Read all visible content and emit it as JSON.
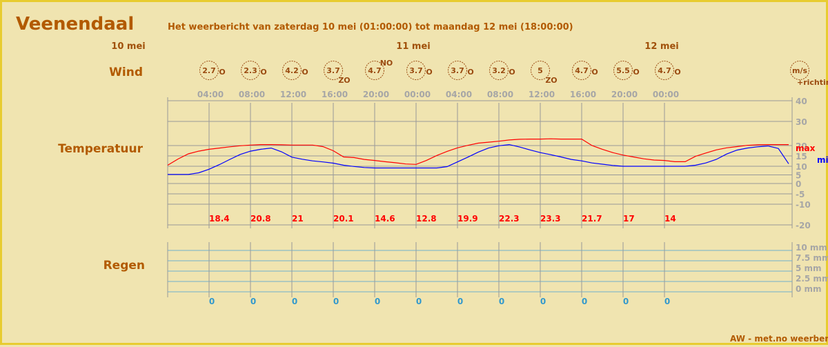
{
  "header": {
    "city": "Veenendaal",
    "subtitle": "Het weerbericht van zaterdag 10 mei (01:00:00) tot maandag 12 mei (18:00:00)"
  },
  "days": [
    {
      "label": "10 mei",
      "hour": 0
    },
    {
      "label": "11 mei",
      "hour": 24
    },
    {
      "label": "12 mei",
      "hour": 48
    }
  ],
  "row_labels": {
    "wind": "Wind",
    "temperature": "Temperatuur",
    "rain": "Regen"
  },
  "wind": {
    "unit": "m/s",
    "unit_note": "+richting",
    "points": [
      {
        "hour": 4,
        "speed": "2.7",
        "dir": "O"
      },
      {
        "hour": 8,
        "speed": "2.3",
        "dir": "O"
      },
      {
        "hour": 12,
        "speed": "4.2",
        "dir": "O"
      },
      {
        "hour": 16,
        "speed": "3.7",
        "dir": "ZO"
      },
      {
        "hour": 20,
        "speed": "4.7",
        "dir": "NO"
      },
      {
        "hour": 24,
        "speed": "3.7",
        "dir": "O"
      },
      {
        "hour": 28,
        "speed": "3.7",
        "dir": "O"
      },
      {
        "hour": 32,
        "speed": "3.2",
        "dir": "O"
      },
      {
        "hour": 36,
        "speed": "5",
        "dir": "ZO"
      },
      {
        "hour": 40,
        "speed": "4.7",
        "dir": "O"
      },
      {
        "hour": 44,
        "speed": "5.5",
        "dir": "O"
      },
      {
        "hour": 48,
        "speed": "4.7",
        "dir": "O"
      }
    ]
  },
  "time_labels": [
    {
      "hour": 4,
      "label": "04:00"
    },
    {
      "hour": 8,
      "label": "08:00"
    },
    {
      "hour": 12,
      "label": "12:00"
    },
    {
      "hour": 16,
      "label": "16:00"
    },
    {
      "hour": 20,
      "label": "20:00"
    },
    {
      "hour": 24,
      "label": "00:00"
    },
    {
      "hour": 28,
      "label": "04:00"
    },
    {
      "hour": 32,
      "label": "08:00"
    },
    {
      "hour": 36,
      "label": "12:00"
    },
    {
      "hour": 40,
      "label": "16:00"
    },
    {
      "hour": 44,
      "label": "20:00"
    },
    {
      "hour": 48,
      "label": "00:00"
    }
  ],
  "chart_data": {
    "type": "line",
    "title": "Temperatuur",
    "x_range_hours": [
      0,
      60
    ],
    "y_ticks": [
      40,
      30,
      20,
      15,
      10,
      5,
      0,
      -5,
      -10,
      -20
    ],
    "series": [
      {
        "name": "max",
        "color": "#ff0000",
        "x": [
          0,
          1,
          2,
          3,
          4,
          5,
          6,
          7,
          8,
          9,
          10,
          11,
          12,
          13,
          14,
          15,
          16,
          17,
          18,
          19,
          20,
          21,
          22,
          23,
          24,
          25,
          26,
          27,
          28,
          29,
          30,
          31,
          32,
          33,
          34,
          35,
          36,
          37,
          38,
          39,
          40,
          41,
          42,
          43,
          44,
          45,
          46,
          47,
          48,
          49,
          50,
          51,
          52,
          53,
          54,
          55,
          56,
          57,
          58,
          59,
          60
        ],
        "values": [
          10.5,
          13.5,
          16,
          17.3,
          18.2,
          18.8,
          19.4,
          19.9,
          20.2,
          20.4,
          20.4,
          20.3,
          20.2,
          20.2,
          20.2,
          19.5,
          17.5,
          14.5,
          14.2,
          13.3,
          12.8,
          12.2,
          11.7,
          11.1,
          10.9,
          12.8,
          15.2,
          17.2,
          18.9,
          20.1,
          21,
          21.4,
          21.8,
          22.3,
          22.6,
          22.7,
          22.7,
          22.8,
          22.7,
          22.7,
          22.7,
          20,
          18.2,
          16.6,
          15.4,
          14.5,
          13.6,
          13,
          12.8,
          12.2,
          12.2,
          14.8,
          16.4,
          17.9,
          18.9,
          19.5,
          20.1,
          20.3,
          20.4,
          20.4,
          20.4
        ]
      },
      {
        "name": "min",
        "color": "#0000ff",
        "x": [
          0,
          1,
          2,
          3,
          4,
          5,
          6,
          7,
          8,
          9,
          10,
          11,
          12,
          13,
          14,
          15,
          16,
          17,
          18,
          19,
          20,
          21,
          22,
          23,
          24,
          25,
          26,
          27,
          28,
          29,
          30,
          31,
          32,
          33,
          34,
          35,
          36,
          37,
          38,
          39,
          40,
          41,
          42,
          43,
          44,
          45,
          46,
          47,
          48,
          49,
          50,
          51,
          52,
          53,
          54,
          55,
          56,
          57,
          58,
          59,
          60
        ],
        "values": [
          5.3,
          5.3,
          5.3,
          6.2,
          8.3,
          10.8,
          13.3,
          15.7,
          17.3,
          18.2,
          18.8,
          17,
          14.4,
          13.4,
          12.6,
          12.1,
          11.5,
          10.5,
          9.9,
          9.3,
          9,
          9,
          9,
          9,
          9,
          9,
          9,
          9.8,
          12.1,
          14.4,
          16.8,
          18.8,
          19.9,
          20.4,
          19.3,
          17.9,
          16.6,
          15.6,
          14.5,
          13.3,
          12.6,
          11.6,
          11,
          10.4,
          10,
          10,
          10,
          10,
          10,
          10,
          10,
          10.5,
          11.6,
          13.3,
          15.9,
          17.8,
          18.8,
          19.4,
          19.8,
          18.6,
          11.2
        ]
      }
    ],
    "max_labels": [
      {
        "hour": 4,
        "value": "18.4"
      },
      {
        "hour": 8,
        "value": "20.8"
      },
      {
        "hour": 12,
        "value": "21"
      },
      {
        "hour": 16,
        "value": "20.1"
      },
      {
        "hour": 20,
        "value": "14.6"
      },
      {
        "hour": 24,
        "value": "12.8"
      },
      {
        "hour": 28,
        "value": "19.9"
      },
      {
        "hour": 32,
        "value": "22.3"
      },
      {
        "hour": 36,
        "value": "23.3"
      },
      {
        "hour": 40,
        "value": "21.7"
      },
      {
        "hour": 44,
        "value": "17"
      },
      {
        "hour": 48,
        "value": "14"
      }
    ]
  },
  "rain": {
    "y_ticks": [
      "10 mm",
      "7.5 mm",
      "5 mm",
      "2.5 mm",
      "0 mm"
    ],
    "values": [
      {
        "hour": 4,
        "value": "0"
      },
      {
        "hour": 8,
        "value": "0"
      },
      {
        "hour": 12,
        "value": "0"
      },
      {
        "hour": 16,
        "value": "0"
      },
      {
        "hour": 20,
        "value": "0"
      },
      {
        "hour": 24,
        "value": "0"
      },
      {
        "hour": 28,
        "value": "0"
      },
      {
        "hour": 32,
        "value": "0"
      },
      {
        "hour": 36,
        "value": "0"
      },
      {
        "hour": 40,
        "value": "0"
      },
      {
        "hour": 44,
        "value": "0"
      },
      {
        "hour": 48,
        "value": "0"
      }
    ]
  },
  "legend": {
    "max": "max",
    "min": "min"
  },
  "footer": "AW - met.no weerbericht"
}
